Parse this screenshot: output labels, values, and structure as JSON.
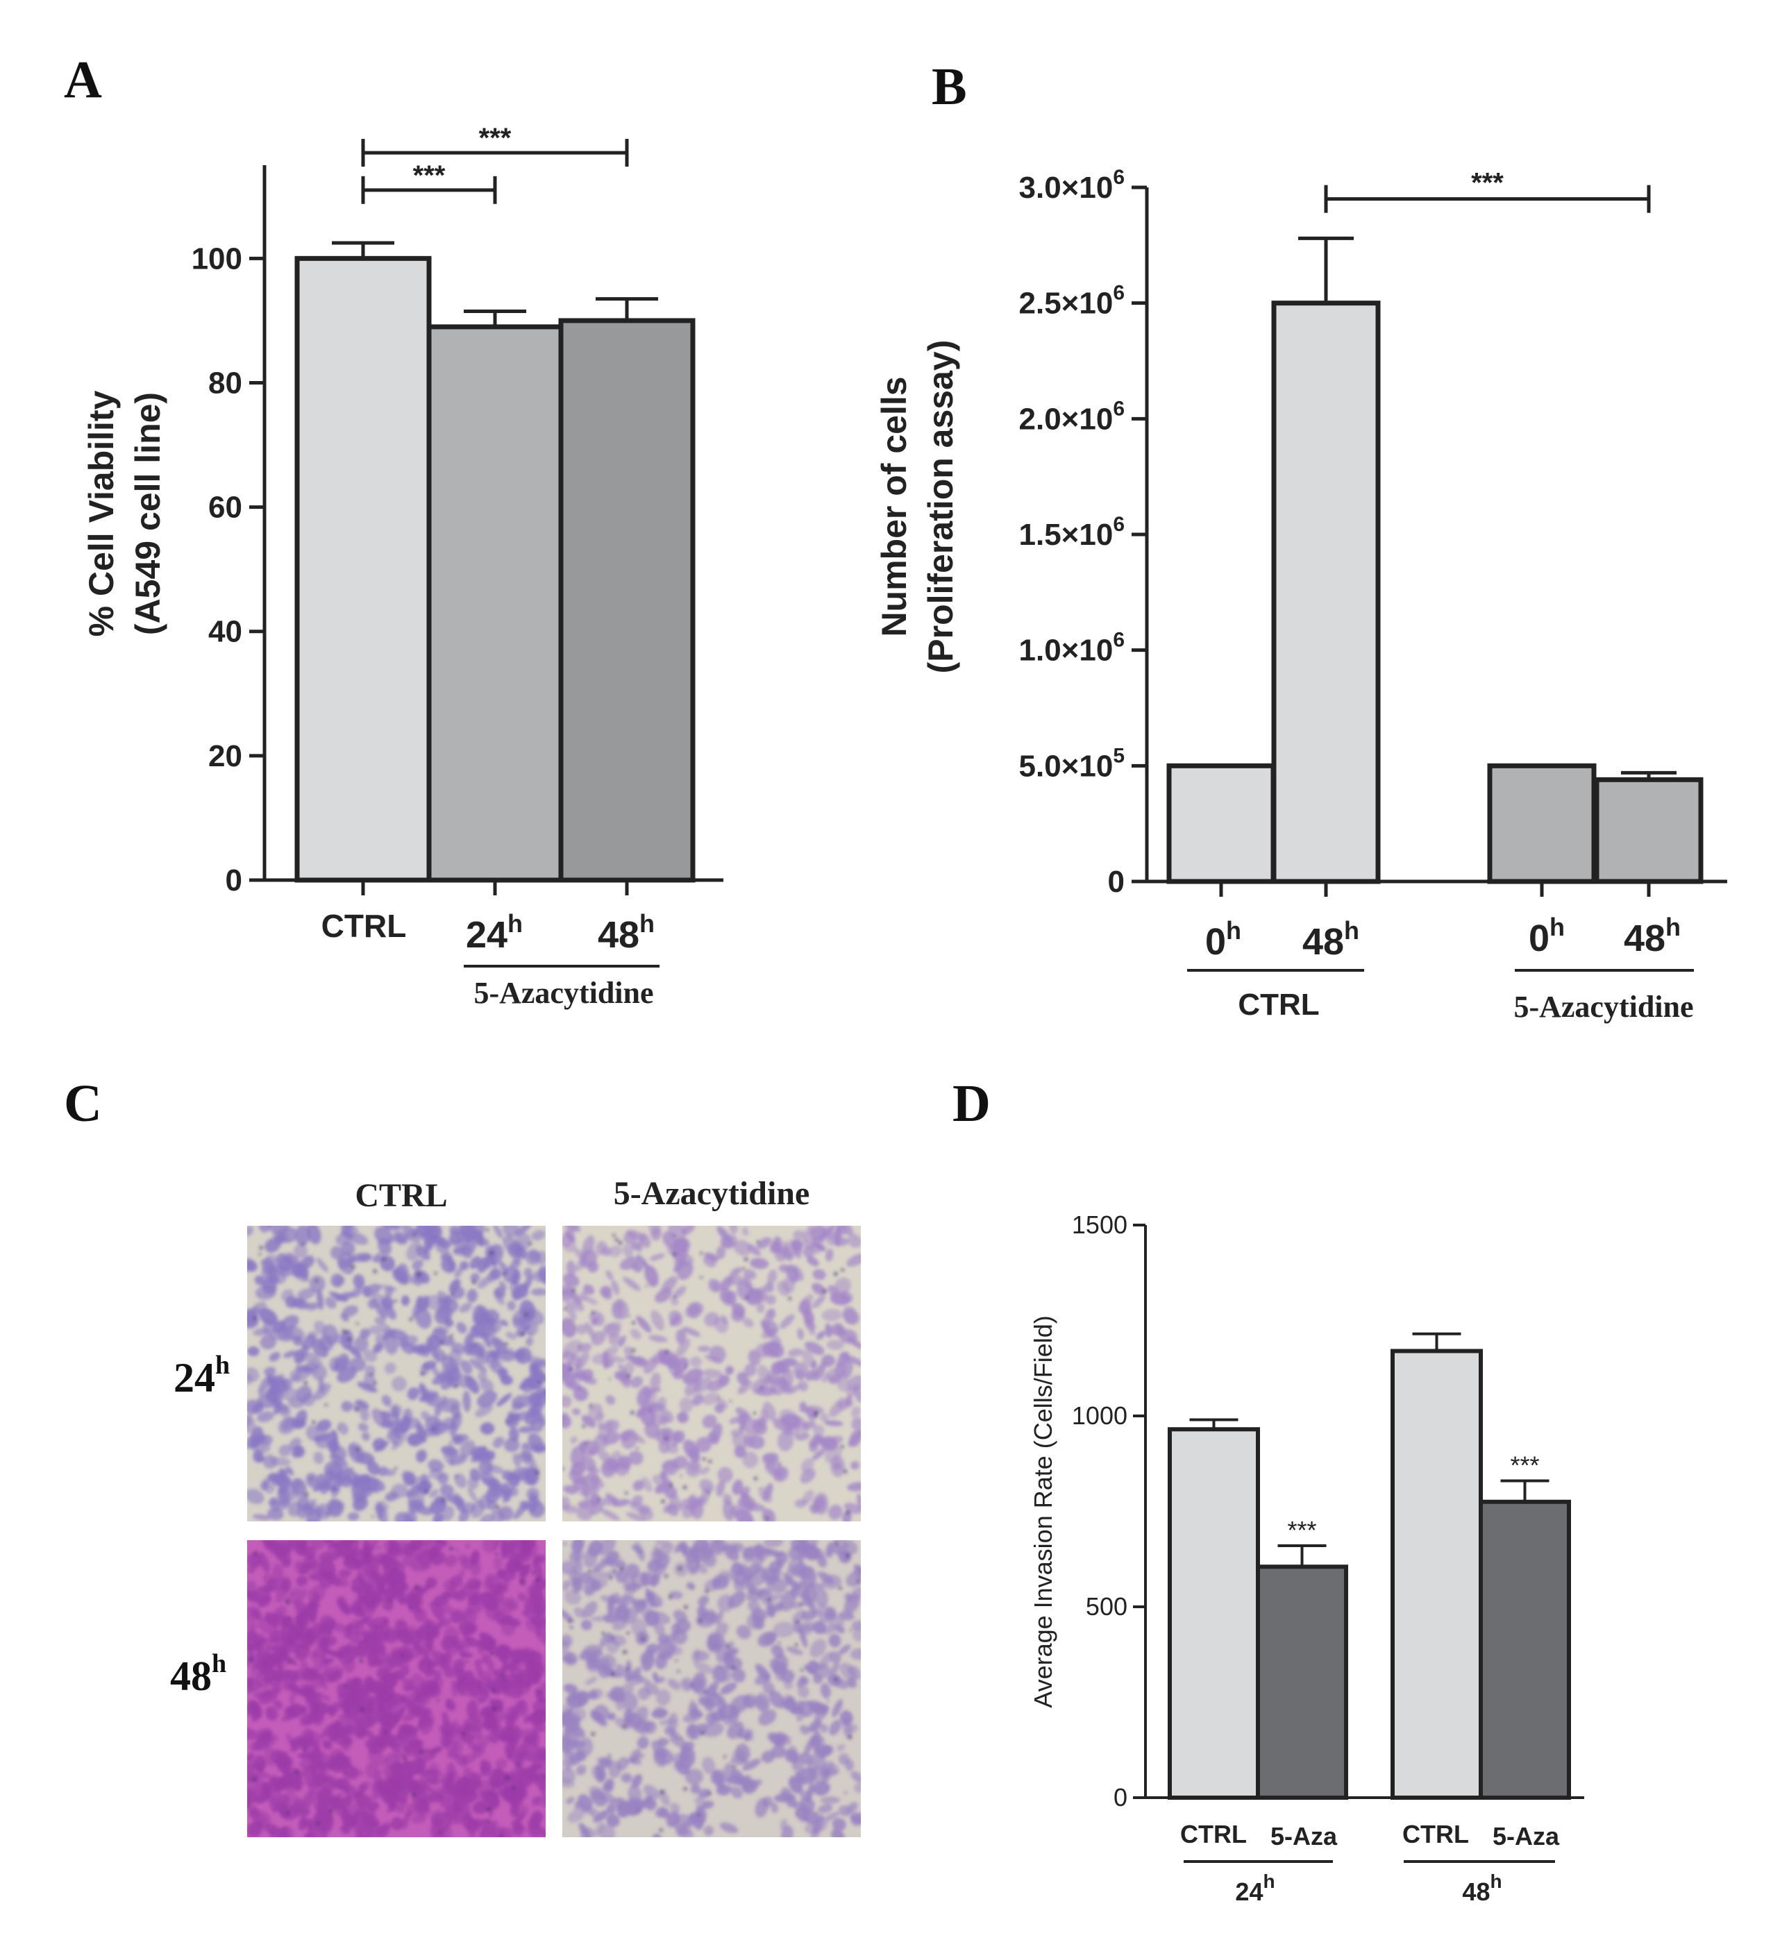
{
  "panel_letters": [
    "A",
    "B",
    "C",
    "D"
  ],
  "chart_data": [
    {
      "panel": "A",
      "type": "bar",
      "ylabel_line1": "% Cell Viability",
      "ylabel_line2": "(A549 cell line)",
      "ylim": [
        0,
        115
      ],
      "yticks": [
        0,
        20,
        40,
        60,
        80,
        100
      ],
      "yticklabels": [
        "0",
        "20",
        "40",
        "60",
        "80",
        "100"
      ],
      "categories": [
        "CTRL",
        "24",
        "48"
      ],
      "category_superscripts": [
        "",
        "h",
        "h"
      ],
      "values": [
        100,
        89,
        90
      ],
      "errors": [
        2.5,
        2.5,
        3.5
      ],
      "colors": [
        "#d9dadb",
        "#b1b2b4",
        "#98999b"
      ],
      "group_label": "5-Azacytidine",
      "significance": [
        {
          "from": "CTRL",
          "to": "24",
          "label": "***"
        },
        {
          "from": "CTRL",
          "to": "48",
          "label": "***"
        }
      ]
    },
    {
      "panel": "B",
      "type": "bar",
      "ylabel_line1": "Number of cells",
      "ylabel_line2": "(Proliferation assay)",
      "ylim": [
        0,
        3000000
      ],
      "yticks": [
        0,
        500000,
        1000000,
        1500000,
        2000000,
        2500000,
        3000000
      ],
      "yticklabels": [
        {
          "mant": "0",
          "exp": ""
        },
        {
          "mant": "5.0×10",
          "exp": "5"
        },
        {
          "mant": "1.0×10",
          "exp": "6"
        },
        {
          "mant": "1.5×10",
          "exp": "6"
        },
        {
          "mant": "2.0×10",
          "exp": "6"
        },
        {
          "mant": "2.5×10",
          "exp": "6"
        },
        {
          "mant": "3.0×10",
          "exp": "6"
        }
      ],
      "categories": [
        "0",
        "48",
        "0",
        "48"
      ],
      "category_superscripts": [
        "h",
        "h",
        "h",
        "h"
      ],
      "groups": [
        "CTRL",
        "5-Azacytidine"
      ],
      "values": [
        500000,
        2500000,
        500000,
        440000
      ],
      "errors": [
        0,
        280000,
        0,
        30000
      ],
      "colors": [
        "#d9dadb",
        "#d9dadb",
        "#b1b2b4",
        "#b1b2b4"
      ],
      "significance": [
        {
          "from": 1,
          "to": 3,
          "label": "***"
        }
      ]
    },
    {
      "panel": "D",
      "type": "bar",
      "ylabel": "Average Invasion Rate (Cells/Field)",
      "ylim": [
        0,
        1500
      ],
      "yticks": [
        0,
        500,
        1000,
        1500
      ],
      "yticklabels": [
        "0",
        "500",
        "1000",
        "1500"
      ],
      "categories": [
        "CTRL",
        "5-Aza",
        "CTRL",
        "5-Aza"
      ],
      "groups": [
        {
          "label": "24",
          "sup": "h"
        },
        {
          "label": "48",
          "sup": "h"
        }
      ],
      "values": [
        965,
        605,
        1170,
        775
      ],
      "errors": [
        25,
        55,
        45,
        55
      ],
      "colors": [
        "#d9dadb",
        "#6c6d70",
        "#d9dadb",
        "#6c6d70"
      ],
      "significance_labels": [
        "",
        "***",
        "",
        "***"
      ]
    }
  ],
  "panel_c": {
    "column_headers": [
      "CTRL",
      "5-Azacytidine"
    ],
    "row_labels": [
      {
        "label": "24",
        "sup": "h"
      },
      {
        "label": "48",
        "sup": "h"
      }
    ],
    "images": [
      {
        "name": "micrograph-ctrl-24h",
        "base": "#d6d2c8",
        "cell": "#8a78c4",
        "density": 0.5
      },
      {
        "name": "micrograph-aza-24h",
        "base": "#d9d5c9",
        "cell": "#a487c8",
        "density": 0.35
      },
      {
        "name": "micrograph-ctrl-48h",
        "base": "#c45dba",
        "cell": "#9c3ca8",
        "density": 0.9
      },
      {
        "name": "micrograph-aza-48h",
        "base": "#d2cdc6",
        "cell": "#9a82c2",
        "density": 0.45
      }
    ]
  }
}
